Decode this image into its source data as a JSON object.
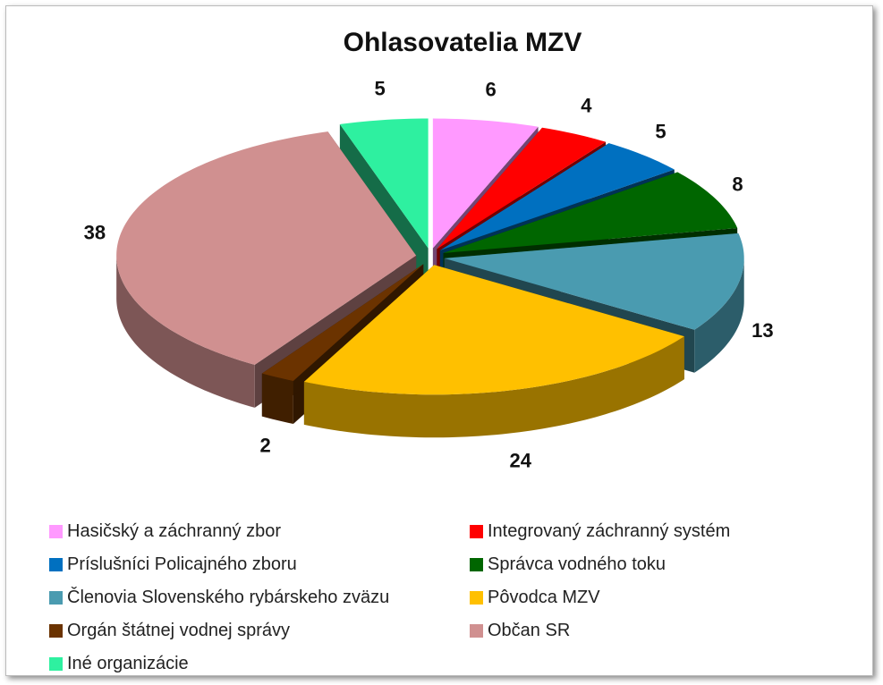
{
  "chart_data": {
    "type": "pie",
    "title": "Ohlasovatelia MZV",
    "categories": [
      "Hasičský a záchranný zbor",
      "Integrovaný záchranný systém",
      "Príslušníci Policajného zboru",
      "Správca vodného toku",
      "Členovia Slovenského rybárskeho zväzu",
      "Pôvodca MZV",
      "Orgán štátnej vodnej správy",
      "Občan SR",
      "Iné organizácie"
    ],
    "values": [
      6,
      4,
      5,
      8,
      13,
      24,
      2,
      38,
      5
    ],
    "colors": [
      "#ff99ff",
      "#ff0000",
      "#0070c0",
      "#006600",
      "#4a9bb0",
      "#ffc000",
      "#6b3300",
      "#d09090",
      "#2ef0a0"
    ],
    "legend": "bottom"
  }
}
